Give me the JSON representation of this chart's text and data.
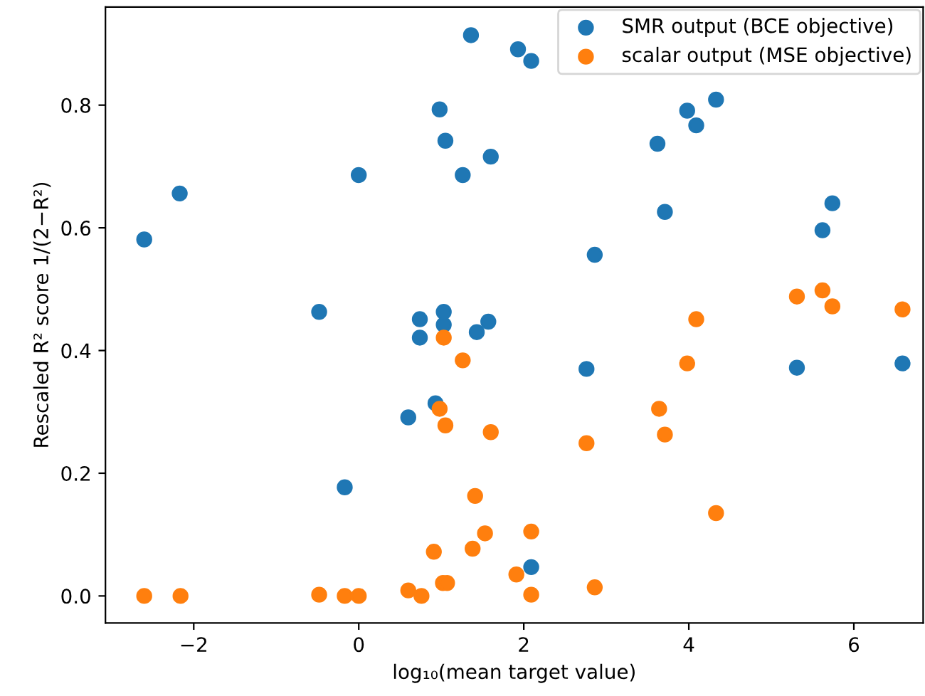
{
  "chart_data": {
    "type": "scatter",
    "xlabel": "log₁₀(mean target value)",
    "ylabel": "Rescaled R² score 1/(2−R²)",
    "xlim": [
      -3.07,
      6.84
    ],
    "ylim": [
      -0.044,
      0.96
    ],
    "xticks": [
      {
        "value": -2,
        "label": "−2"
      },
      0,
      2,
      4,
      6
    ],
    "yticks": [
      {
        "value": 0,
        "label": "0.0"
      },
      0.2,
      0.4,
      0.6,
      0.8
    ],
    "legend": "top right",
    "marker": "circle",
    "grid": false,
    "series": [
      {
        "name": "SMR output (BCE objective)",
        "color": "#1f77b4",
        "x": [
          -2.6,
          -2.17,
          0.0,
          -0.48,
          0.74,
          0.74,
          1.03,
          1.03,
          1.57,
          1.43,
          0.98,
          1.05,
          1.26,
          1.6,
          1.36,
          1.93,
          2.09,
          4.33,
          3.98,
          4.09,
          3.62,
          3.71,
          2.86,
          5.74,
          5.62,
          0.93,
          0.6,
          -0.17,
          2.09,
          2.76,
          5.31,
          6.59
        ],
        "values": [
          0.581,
          0.656,
          0.686,
          0.463,
          0.451,
          0.421,
          0.463,
          0.442,
          0.447,
          0.43,
          0.793,
          0.742,
          0.686,
          0.716,
          0.914,
          0.891,
          0.872,
          0.809,
          0.791,
          0.767,
          0.737,
          0.626,
          0.556,
          0.64,
          0.596,
          0.314,
          0.291,
          0.177,
          0.047,
          0.37,
          0.372,
          0.379
        ]
      },
      {
        "name": "scalar output (MSE objective)",
        "color": "#ff7f0e",
        "x": [
          -2.6,
          -2.16,
          -0.48,
          -0.17,
          0.0,
          0.6,
          0.76,
          1.02,
          1.07,
          0.91,
          1.38,
          1.53,
          1.41,
          1.91,
          0.98,
          1.05,
          1.6,
          1.26,
          1.03,
          2.09,
          2.09,
          2.86,
          2.76,
          3.64,
          3.71,
          3.98,
          4.33,
          4.09,
          5.31,
          5.62,
          5.74,
          6.59
        ],
        "values": [
          0.0,
          0.0,
          0.002,
          0.0,
          0.0,
          0.009,
          0.0,
          0.021,
          0.021,
          0.072,
          0.077,
          0.102,
          0.163,
          0.035,
          0.305,
          0.278,
          0.267,
          0.384,
          0.421,
          0.105,
          0.002,
          0.014,
          0.249,
          0.305,
          0.263,
          0.379,
          0.135,
          0.451,
          0.488,
          0.498,
          0.472,
          0.467
        ]
      }
    ]
  }
}
